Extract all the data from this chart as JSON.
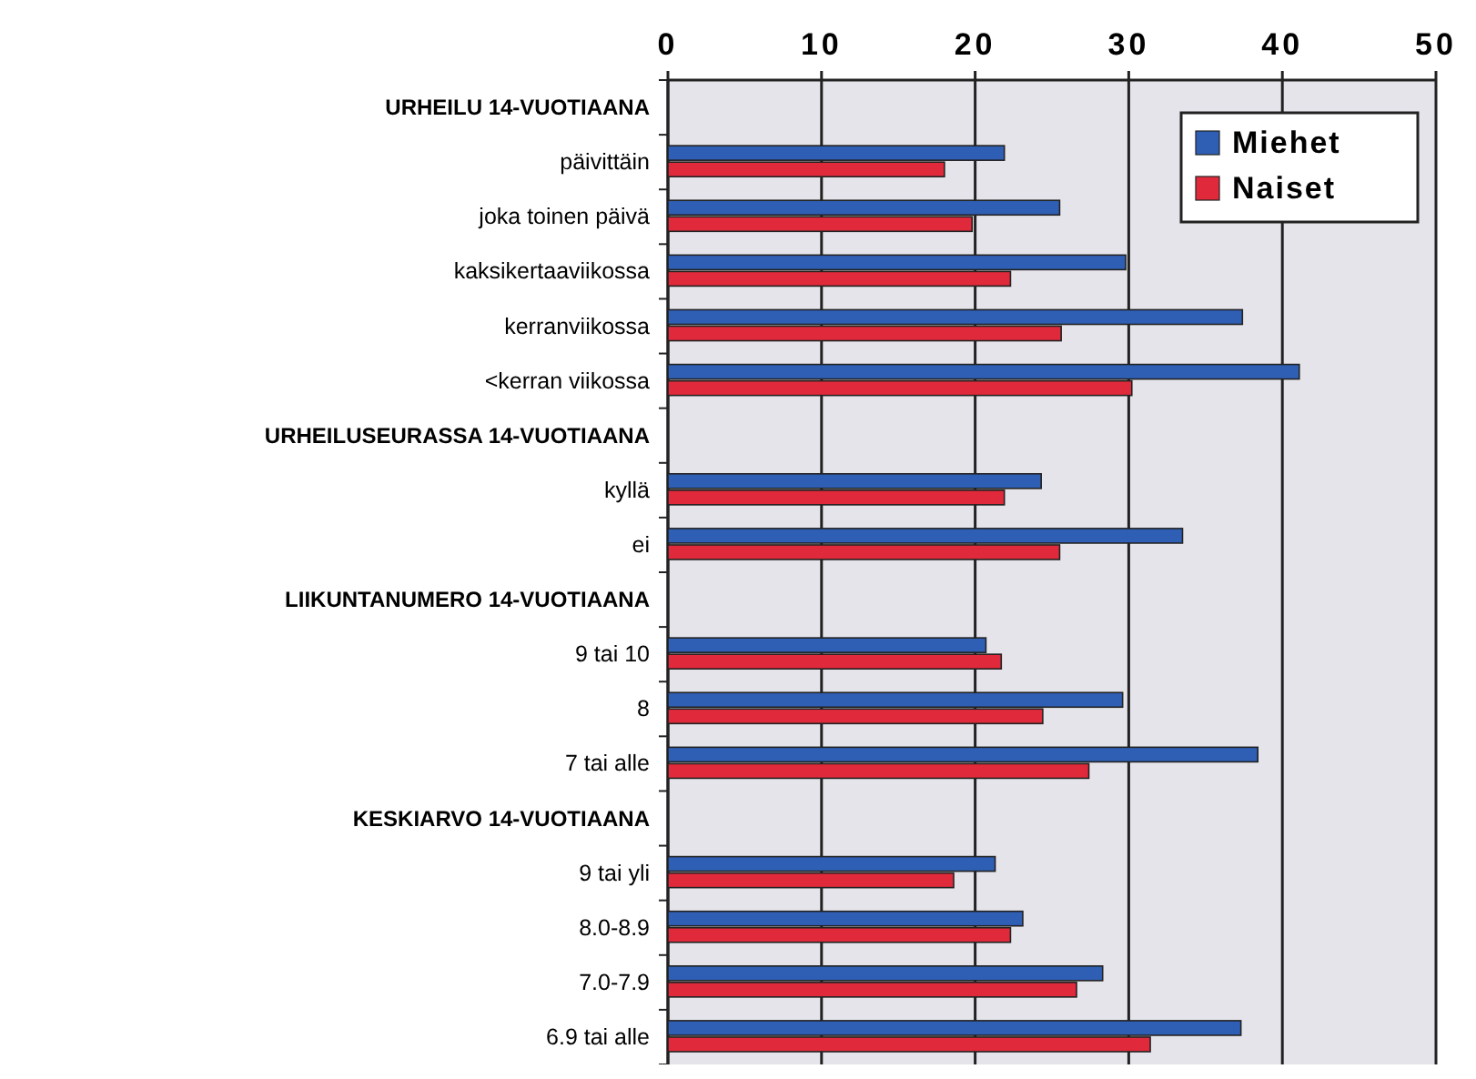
{
  "chart_data": {
    "type": "bar",
    "orientation": "horizontal",
    "categories": [
      "URHEILU 14-VUOTIAANA",
      "päivittäin",
      "joka toinen päivä",
      "kaksikertaaviikossa",
      "kerranviikossa",
      "<kerran viikossa",
      "URHEILUSEURASSA 14-VUOTIAANA",
      "kyllä",
      "ei",
      "LIIKUNTANUMERO 14-VUOTIAANA",
      "9 tai 10",
      "8",
      "7 tai alle",
      "KESKIARVO 14-VUOTIAANA",
      "9 tai yli",
      "8.0-8.9",
      "7.0-7.9",
      "6.9 tai alle"
    ],
    "series": [
      {
        "name": "Miehet",
        "color": "#2f5fb5",
        "values": [
          null,
          21.9,
          25.5,
          29.8,
          37.4,
          41.1,
          null,
          24.3,
          33.5,
          null,
          20.7,
          29.6,
          38.4,
          null,
          21.3,
          23.1,
          28.3,
          37.3
        ]
      },
      {
        "name": "Naiset",
        "color": "#e02a3c",
        "values": [
          null,
          18.0,
          19.8,
          22.3,
          25.6,
          30.2,
          null,
          21.9,
          25.5,
          null,
          21.7,
          24.4,
          27.4,
          null,
          18.6,
          22.3,
          26.6,
          31.4
        ]
      }
    ],
    "xlim": [
      0,
      50
    ],
    "xticks": [
      0,
      10,
      20,
      30,
      40,
      50
    ],
    "grid": "x",
    "legend": "top right"
  }
}
